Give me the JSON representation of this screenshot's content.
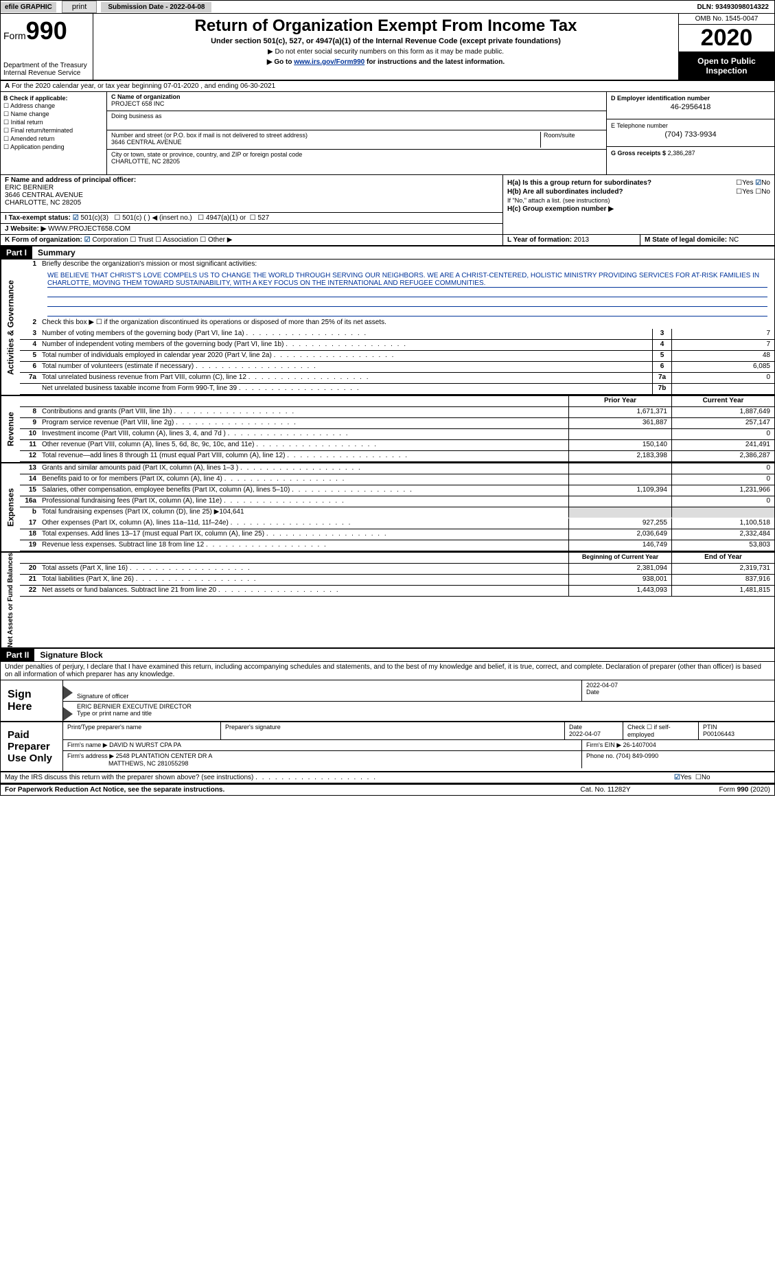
{
  "topbar": {
    "efile": "efile GRAPHIC",
    "print": "print",
    "subdate_label": "Submission Date - ",
    "subdate": "2022-04-08",
    "dln_label": "DLN: ",
    "dln": "93493098014322"
  },
  "header": {
    "form_word": "Form",
    "form_num": "990",
    "dept": "Department of the Treasury\nInternal Revenue Service",
    "title": "Return of Organization Exempt From Income Tax",
    "subtitle": "Under section 501(c), 527, or 4947(a)(1) of the Internal Revenue Code (except private foundations)",
    "note1": "▶ Do not enter social security numbers on this form as it may be made public.",
    "note2": "▶ Go to www.irs.gov/Form990 for instructions and the latest information.",
    "link": "www.irs.gov/Form990",
    "omb": "OMB No. 1545-0047",
    "year": "2020",
    "openpub": "Open to Public Inspection"
  },
  "row_a": "For the 2020 calendar year, or tax year beginning 07-01-2020    , and ending 06-30-2021",
  "section_b": {
    "title": "B Check if applicable:",
    "items": [
      "Address change",
      "Name change",
      "Initial return",
      "Final return/terminated",
      "Amended return",
      "Application pending"
    ],
    "c_label": "C Name of organization",
    "c_name": "PROJECT 658 INC",
    "dba": "Doing business as",
    "addr_label": "Number and street (or P.O. box if mail is not delivered to street address)",
    "room": "Room/suite",
    "addr": "3646 CENTRAL AVENUE",
    "city_label": "City or town, state or province, country, and ZIP or foreign postal code",
    "city": "CHARLOTTE, NC  28205",
    "d_label": "D Employer identification number",
    "d_val": "46-2956418",
    "e_label": "E Telephone number",
    "e_val": "(704) 733-9934",
    "g_label": "G Gross receipts $",
    "g_val": "2,386,287"
  },
  "section_f": {
    "f_label": "F  Name and address of principal officer:",
    "f_name": "ERIC BERNIER",
    "f_addr1": "3646 CENTRAL AVENUE",
    "f_addr2": "CHARLOTTE, NC  28205",
    "i_label": "I   Tax-exempt status:",
    "i_501c3": "501(c)(3)",
    "i_501c": "501(c) (    ) ◀ (insert no.)",
    "i_4947": "4947(a)(1) or",
    "i_527": "527",
    "j_label": "J   Website: ▶",
    "j_val": "WWW.PROJECT658.COM",
    "k_label": "K Form of organization:",
    "k_corp": "Corporation",
    "k_trust": "Trust",
    "k_assoc": "Association",
    "k_other": "Other ▶",
    "ha": "H(a)  Is this a group return for subordinates?",
    "hb": "H(b)  Are all subordinates included?",
    "hb_note": "If \"No,\" attach a list. (see instructions)",
    "hc": "H(c)  Group exemption number ▶",
    "l_label": "L Year of formation:",
    "l_val": "2013",
    "m_label": "M State of legal domicile:",
    "m_val": "NC",
    "yes": "Yes",
    "no": "No"
  },
  "part1": {
    "hdr": "Part I",
    "title": "Summary",
    "line1": "Briefly describe the organization's mission or most significant activities:",
    "mission": "WE BELIEVE THAT CHRIST'S LOVE COMPELS US TO CHANGE THE WORLD THROUGH SERVING OUR NEIGHBORS. WE ARE A CHRIST-CENTERED, HOLISTIC MINISTRY PROVIDING SERVICES FOR AT-RISK FAMILIES IN CHARLOTTE, MOVING THEM TOWARD SUSTAINABILITY, WITH A KEY FOCUS ON THE INTERNATIONAL AND REFUGEE COMMUNITIES.",
    "line2": "Check this box ▶ ☐  if the organization discontinued its operations or disposed of more than 25% of its net assets.",
    "side_gov": "Activities & Governance",
    "side_rev": "Revenue",
    "side_exp": "Expenses",
    "side_net": "Net Assets or Fund Balances",
    "rows_gov": [
      {
        "n": "3",
        "t": "Number of voting members of the governing body (Part VI, line 1a)",
        "b": "3",
        "v": "7"
      },
      {
        "n": "4",
        "t": "Number of independent voting members of the governing body (Part VI, line 1b)",
        "b": "4",
        "v": "7"
      },
      {
        "n": "5",
        "t": "Total number of individuals employed in calendar year 2020 (Part V, line 2a)",
        "b": "5",
        "v": "48"
      },
      {
        "n": "6",
        "t": "Total number of volunteers (estimate if necessary)",
        "b": "6",
        "v": "6,085"
      },
      {
        "n": "7a",
        "t": "Total unrelated business revenue from Part VIII, column (C), line 12",
        "b": "7a",
        "v": "0"
      },
      {
        "n": "",
        "t": "Net unrelated business taxable income from Form 990-T, line 39",
        "b": "7b",
        "v": ""
      }
    ],
    "col_prior": "Prior Year",
    "col_curr": "Current Year",
    "rows_rev": [
      {
        "n": "8",
        "t": "Contributions and grants (Part VIII, line 1h)",
        "p": "1,671,371",
        "c": "1,887,649"
      },
      {
        "n": "9",
        "t": "Program service revenue (Part VIII, line 2g)",
        "p": "361,887",
        "c": "257,147"
      },
      {
        "n": "10",
        "t": "Investment income (Part VIII, column (A), lines 3, 4, and 7d )",
        "p": "",
        "c": "0"
      },
      {
        "n": "11",
        "t": "Other revenue (Part VIII, column (A), lines 5, 6d, 8c, 9c, 10c, and 11e)",
        "p": "150,140",
        "c": "241,491"
      },
      {
        "n": "12",
        "t": "Total revenue—add lines 8 through 11 (must equal Part VIII, column (A), line 12)",
        "p": "2,183,398",
        "c": "2,386,287"
      }
    ],
    "rows_exp": [
      {
        "n": "13",
        "t": "Grants and similar amounts paid (Part IX, column (A), lines 1–3 )",
        "p": "",
        "c": "0"
      },
      {
        "n": "14",
        "t": "Benefits paid to or for members (Part IX, column (A), line 4)",
        "p": "",
        "c": "0"
      },
      {
        "n": "15",
        "t": "Salaries, other compensation, employee benefits (Part IX, column (A), lines 5–10)",
        "p": "1,109,394",
        "c": "1,231,966"
      },
      {
        "n": "16a",
        "t": "Professional fundraising fees (Part IX, column (A), line 11e)",
        "p": "",
        "c": "0"
      },
      {
        "n": "b",
        "t": "Total fundraising expenses (Part IX, column (D), line 25) ▶104,641",
        "p": "",
        "c": ""
      },
      {
        "n": "17",
        "t": "Other expenses (Part IX, column (A), lines 11a–11d, 11f–24e)",
        "p": "927,255",
        "c": "1,100,518"
      },
      {
        "n": "18",
        "t": "Total expenses. Add lines 13–17 (must equal Part IX, column (A), line 25)",
        "p": "2,036,649",
        "c": "2,332,484"
      },
      {
        "n": "19",
        "t": "Revenue less expenses. Subtract line 18 from line 12",
        "p": "146,749",
        "c": "53,803"
      }
    ],
    "col_beg": "Beginning of Current Year",
    "col_end": "End of Year",
    "rows_net": [
      {
        "n": "20",
        "t": "Total assets (Part X, line 16)",
        "p": "2,381,094",
        "c": "2,319,731"
      },
      {
        "n": "21",
        "t": "Total liabilities (Part X, line 26)",
        "p": "938,001",
        "c": "837,916"
      },
      {
        "n": "22",
        "t": "Net assets or fund balances. Subtract line 21 from line 20",
        "p": "1,443,093",
        "c": "1,481,815"
      }
    ]
  },
  "part2": {
    "hdr": "Part II",
    "title": "Signature Block",
    "decl": "Under penalties of perjury, I declare that I have examined this return, including accompanying schedules and statements, and to the best of my knowledge and belief, it is true, correct, and complete. Declaration of preparer (other than officer) is based on all information of which preparer has any knowledge.",
    "sign_here": "Sign Here",
    "sig_officer": "Signature of officer",
    "sig_date_label": "Date",
    "sig_date": "2022-04-07",
    "sig_name": "ERIC BERNIER  EXECUTIVE DIRECTOR",
    "sig_name_label": "Type or print name and title",
    "paid": "Paid Preparer Use Only",
    "prep_name_label": "Print/Type preparer's name",
    "prep_sig_label": "Preparer's signature",
    "prep_date_label": "Date",
    "prep_date": "2022-04-07",
    "self_emp": "Check ☐ if self-employed",
    "ptin_label": "PTIN",
    "ptin": "P00106443",
    "firm_name_label": "Firm's name    ▶",
    "firm_name": "DAVID N WURST CPA PA",
    "firm_ein_label": "Firm's EIN ▶",
    "firm_ein": "26-1407004",
    "firm_addr_label": "Firm's address ▶",
    "firm_addr": "2548 PLANTATION CENTER DR A",
    "firm_addr2": "MATTHEWS, NC  281055298",
    "phone_label": "Phone no.",
    "phone": "(704) 849-0990",
    "discuss": "May the IRS discuss this return with the preparer shown above? (see instructions)",
    "yes": "Yes",
    "no": "No"
  },
  "footer": {
    "pra": "For Paperwork Reduction Act Notice, see the separate instructions.",
    "cat": "Cat. No. 11282Y",
    "form": "Form 990 (2020)"
  },
  "colors": {
    "link": "#003399",
    "check": "#1a5490"
  }
}
